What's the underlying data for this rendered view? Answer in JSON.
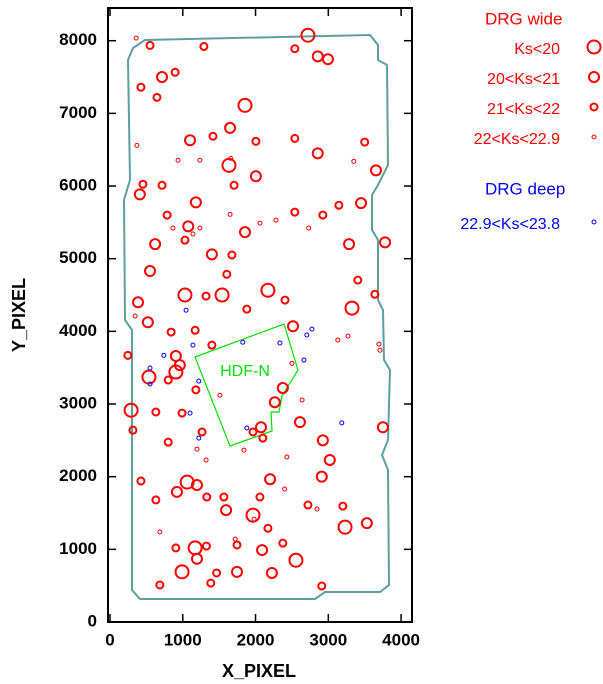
{
  "chart_data": {
    "type": "scatter",
    "x_label": "X_PIXEL",
    "y_label": "Y_PIXEL",
    "xlim": [
      0,
      4150
    ],
    "ylim": [
      0,
      8450
    ],
    "xticks": [
      0,
      1000,
      2000,
      3000,
      4000
    ],
    "yticks": [
      0,
      1000,
      2000,
      3000,
      4000,
      5000,
      6000,
      7000,
      8000
    ],
    "annotations": [
      {
        "text": "HDF-N",
        "color": "#00e000"
      }
    ],
    "groups": [
      {
        "title": "DRG wide",
        "color": "#ff0000",
        "series": [
          {
            "name": "Ks<20",
            "x": [
              2720,
              1855,
              1635,
              1030,
              1540,
              2170,
              3325,
              290,
              1060,
              1965,
              3230,
              990,
              2555,
              1170,
              535,
              905
            ],
            "y": [
              8075,
              7110,
              6285,
              4500,
              4500,
              4565,
              4320,
              2915,
              1925,
              1470,
              1305,
              690,
              850,
              1020,
              3370,
              3440
            ]
          },
          {
            "name": "20<Ks<21",
            "x": [
              715,
              1650,
              1100,
              3655,
              3450,
              3780,
              3285,
              620,
              1400,
              550,
              385,
              520,
              905,
              2515,
              2375,
              2265,
              2610,
              2925,
              3020,
              2910,
              3750,
              1195,
              920,
              1195,
              2090,
              1745,
              2225,
              3530,
              2855,
              2855,
              2995,
              2005,
              1180,
              1075,
              1855,
              410,
              960,
              2075,
              1595,
              2200
            ],
            "y": [
              7500,
              6800,
              6630,
              6215,
              5765,
              5225,
              5200,
              5200,
              5060,
              4830,
              4400,
              4125,
              3660,
              4070,
              3220,
              3025,
              2750,
              2500,
              2230,
              2000,
              2680,
              1885,
              1790,
              870,
              990,
              690,
              675,
              1360,
              6450,
              7785,
              7745,
              6135,
              5775,
              5445,
              5365,
              5885,
              3535,
              2680,
              1540,
              1965
            ]
          },
          {
            "name": "21<Ks<22",
            "x": [
              550,
              1290,
              2540,
              425,
              645,
              895,
              1415,
              2005,
              2540,
              3500,
              453,
              715,
              1705,
              2540,
              2925,
              3145,
              785,
              1030,
              1675,
              3405,
              3640,
              1605,
              1320,
              2405,
              1880,
              840,
              1170,
              1400,
              245,
              800,
              1180,
              630,
              990,
              800,
              1265,
              315,
              1965,
              2100,
              425,
              630,
              1330,
              1565,
              2060,
              3200,
              2170,
              2720,
              905,
              1325,
              1385,
              1745,
              2375,
              2910,
              685,
              1465
            ],
            "y": [
              7935,
              7920,
              7890,
              7360,
              7220,
              7565,
              6685,
              6615,
              6655,
              6605,
              6025,
              6010,
              6010,
              5640,
              5600,
              5735,
              5600,
              5255,
              5050,
              4705,
              4510,
              4785,
              4485,
              4430,
              4305,
              3990,
              4015,
              3810,
              3670,
              3330,
              3195,
              2890,
              2875,
              2475,
              2615,
              2640,
              2615,
              2530,
              1940,
              1680,
              1720,
              1720,
              1720,
              1595,
              1290,
              1610,
              1020,
              1045,
              535,
              1060,
              1085,
              495,
              510,
              675
            ]
          },
          {
            "name": "22<Ks<22.9",
            "x": [
              360,
              370,
              1235,
              1650,
              865,
              1140,
              2060,
              2280,
              2730,
              3350,
              1660,
              935,
              1235,
              345,
              2500,
              3130,
              3270,
              2640,
              3695,
              3710,
              1320,
              1840,
              2430,
              2400,
              2845,
              685,
              1720,
              1980,
              1195,
              1510
            ],
            "y": [
              8035,
              6560,
              6355,
              5610,
              5420,
              5340,
              5490,
              5530,
              5420,
              6340,
              6380,
              6355,
              5420,
              4210,
              3560,
              3880,
              3935,
              3055,
              3825,
              3740,
              2230,
              2365,
              2270,
              1830,
              1555,
              1240,
              1140,
              1415,
              2380,
              3120
            ]
          }
        ]
      },
      {
        "title": "DRG deep",
        "color": "#0000ff",
        "series": [
          {
            "name": "22.9<Ks<23.8",
            "x": [
              1045,
              740,
              550,
              550,
              1140,
              1220,
              1100,
              1220,
              1825,
              2335,
              2775,
              2705,
              2665,
              3185,
              1880
            ],
            "y": [
              4290,
              3670,
              3495,
              3275,
              3810,
              3315,
              2875,
              2530,
              3850,
              3840,
              4030,
              3950,
              3605,
              2740,
              2670
            ]
          }
        ]
      }
    ]
  }
}
